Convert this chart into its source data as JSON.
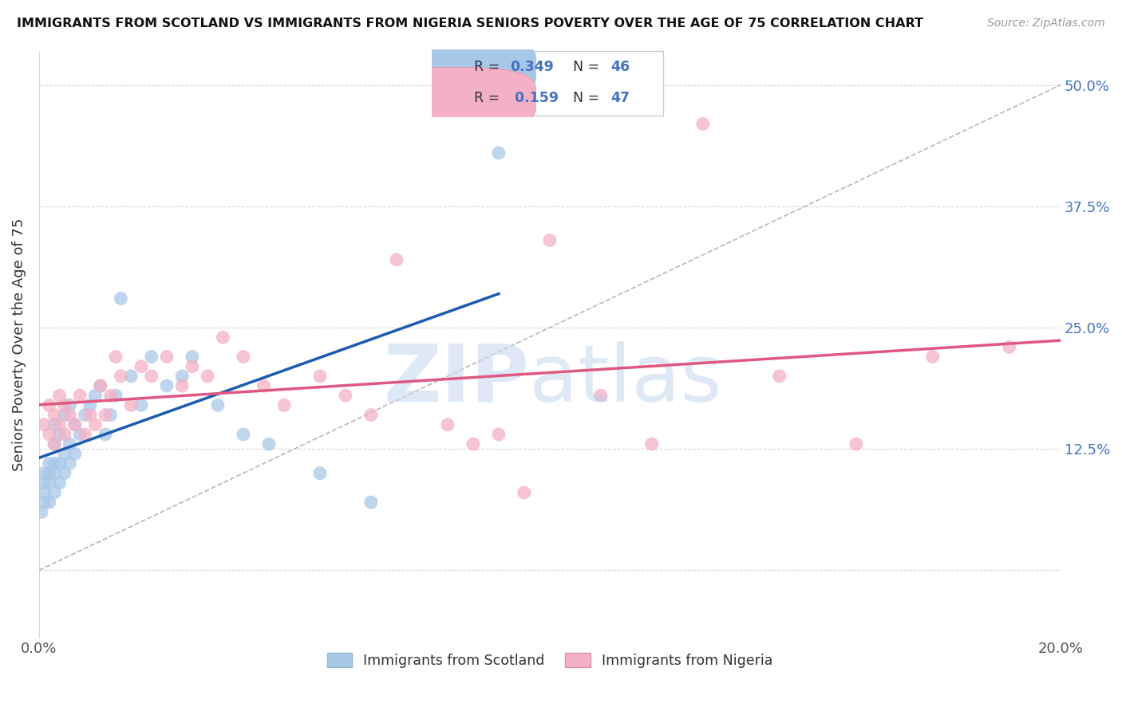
{
  "title": "IMMIGRANTS FROM SCOTLAND VS IMMIGRANTS FROM NIGERIA SENIORS POVERTY OVER THE AGE OF 75 CORRELATION CHART",
  "source": "Source: ZipAtlas.com",
  "ylabel": "Seniors Poverty Over the Age of 75",
  "ytick_labels": [
    "",
    "12.5%",
    "25.0%",
    "37.5%",
    "50.0%"
  ],
  "ytick_values": [
    0,
    0.125,
    0.25,
    0.375,
    0.5
  ],
  "xmin": 0.0,
  "xmax": 0.2,
  "ymin": -0.07,
  "ymax": 0.535,
  "scotland_color": "#a8c8e8",
  "nigeria_color": "#f4b0c4",
  "scotland_line_color": "#1a5cb0",
  "nigeria_line_color": "#e05880",
  "legend_scotland_label": "Immigrants from Scotland",
  "legend_nigeria_label": "Immigrants from Nigeria",
  "scotland_x": [
    0.0005,
    0.001,
    0.001,
    0.001,
    0.001,
    0.002,
    0.002,
    0.002,
    0.002,
    0.003,
    0.003,
    0.003,
    0.003,
    0.003,
    0.004,
    0.004,
    0.004,
    0.005,
    0.005,
    0.005,
    0.006,
    0.006,
    0.006,
    0.007,
    0.007,
    0.008,
    0.009,
    0.01,
    0.011,
    0.012,
    0.013,
    0.014,
    0.015,
    0.016,
    0.018,
    0.02,
    0.022,
    0.025,
    0.028,
    0.03,
    0.035,
    0.04,
    0.045,
    0.055,
    0.065,
    0.09
  ],
  "scotland_y": [
    0.06,
    0.07,
    0.08,
    0.09,
    0.1,
    0.07,
    0.09,
    0.1,
    0.11,
    0.08,
    0.1,
    0.11,
    0.13,
    0.15,
    0.09,
    0.11,
    0.14,
    0.1,
    0.12,
    0.16,
    0.11,
    0.13,
    0.17,
    0.12,
    0.15,
    0.14,
    0.16,
    0.17,
    0.18,
    0.19,
    0.14,
    0.16,
    0.18,
    0.28,
    0.2,
    0.17,
    0.22,
    0.19,
    0.2,
    0.22,
    0.17,
    0.14,
    0.13,
    0.1,
    0.07,
    0.43
  ],
  "nigeria_x": [
    0.001,
    0.002,
    0.002,
    0.003,
    0.003,
    0.004,
    0.004,
    0.005,
    0.005,
    0.006,
    0.007,
    0.008,
    0.009,
    0.01,
    0.011,
    0.012,
    0.013,
    0.014,
    0.015,
    0.016,
    0.018,
    0.02,
    0.022,
    0.025,
    0.028,
    0.03,
    0.033,
    0.036,
    0.04,
    0.044,
    0.048,
    0.055,
    0.06,
    0.065,
    0.07,
    0.08,
    0.085,
    0.09,
    0.095,
    0.1,
    0.11,
    0.12,
    0.13,
    0.145,
    0.16,
    0.175,
    0.19
  ],
  "nigeria_y": [
    0.15,
    0.14,
    0.17,
    0.13,
    0.16,
    0.15,
    0.18,
    0.14,
    0.17,
    0.16,
    0.15,
    0.18,
    0.14,
    0.16,
    0.15,
    0.19,
    0.16,
    0.18,
    0.22,
    0.2,
    0.17,
    0.21,
    0.2,
    0.22,
    0.19,
    0.21,
    0.2,
    0.24,
    0.22,
    0.19,
    0.17,
    0.2,
    0.18,
    0.16,
    0.32,
    0.15,
    0.13,
    0.14,
    0.08,
    0.34,
    0.18,
    0.13,
    0.46,
    0.2,
    0.13,
    0.22,
    0.23
  ]
}
